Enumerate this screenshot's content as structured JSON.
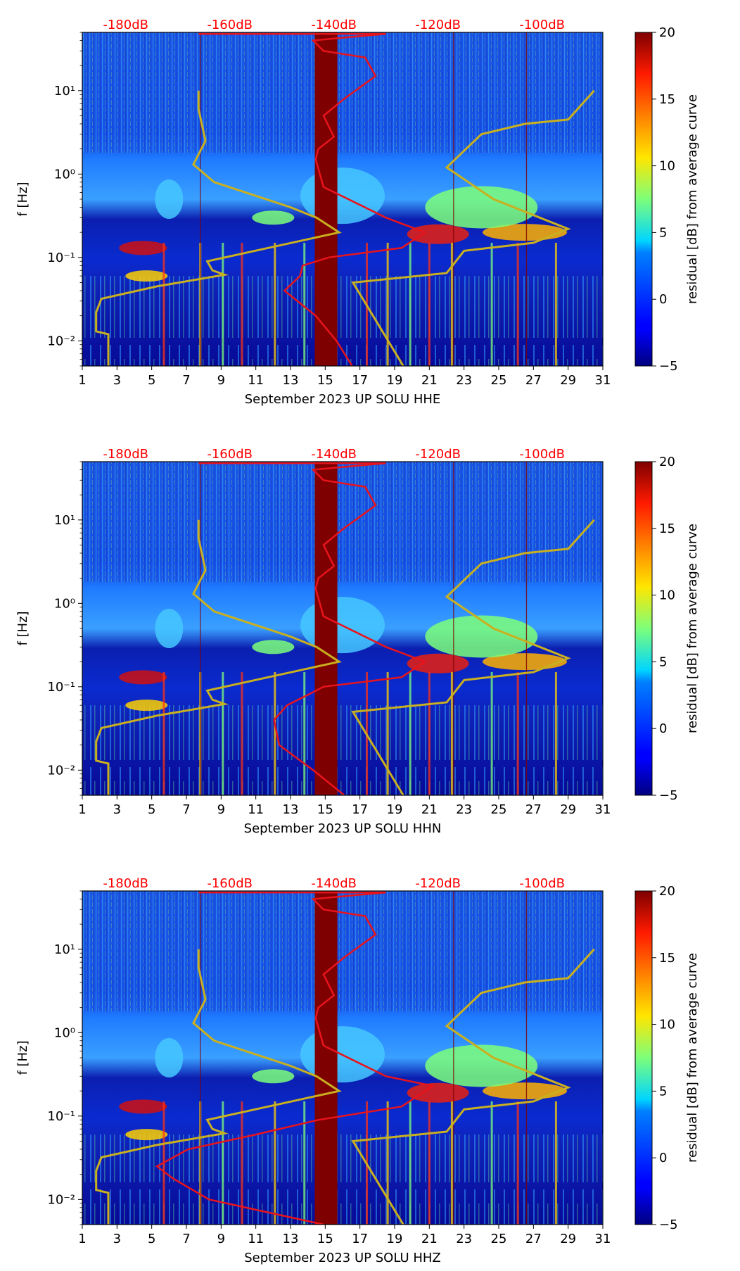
{
  "figure_title": "",
  "colors": {
    "psd_curve": "#e8141c",
    "model_curve": "#c9b020",
    "top_label": "#ff0000",
    "gap_band": "#7f0000"
  },
  "chart_data": [
    {
      "type": "heatmap",
      "panel": "HHE",
      "xlabel": "September 2023 UP SOLU  HHE",
      "ylabel": "f [Hz]",
      "x_ticks": [
        "1",
        "3",
        "5",
        "7",
        "9",
        "11",
        "13",
        "15",
        "17",
        "19",
        "21",
        "23",
        "25",
        "27",
        "29",
        "31"
      ],
      "y_ticks": [
        "10⁻²",
        "10⁻¹",
        "10⁰",
        "10¹"
      ],
      "top_ticks": [
        "-180dB",
        "-160dB",
        "-140dB",
        "-120dB",
        "-100dB"
      ],
      "top_axis_dB": [
        -180,
        -160,
        -140,
        -120,
        -100
      ],
      "colorbar": {
        "label": "residual [dB] from average curve",
        "min": -5,
        "max": 20,
        "ticks": [
          "−5",
          "0",
          "5",
          "10",
          "15",
          "20"
        ]
      },
      "xlim": [
        1,
        31
      ],
      "ylim_hz": [
        0.005,
        50
      ],
      "data_gap_days": [
        14.4,
        15.7
      ],
      "psd_curve_red": {
        "dB": [
          -136.5,
          -139.5,
          -143.5,
          -149.5,
          -146.5,
          -146,
          -141,
          -127,
          -122.5,
          -130,
          -142,
          -143.5,
          -143,
          -140,
          -142,
          -138,
          -132,
          -134,
          -142,
          -144,
          -135,
          -130,
          -166
        ],
        "f_hz": [
          0.005,
          0.01,
          0.02,
          0.04,
          0.06,
          0.08,
          0.1,
          0.13,
          0.2,
          0.3,
          0.7,
          1.5,
          2,
          2.8,
          5,
          8,
          15,
          25,
          30,
          40,
          45,
          48,
          48
        ]
      },
      "model_curve_yellow": {
        "day": [
          2.5,
          2.5,
          1.8,
          1.8,
          2.1,
          5.3,
          9.2,
          8.5,
          8.2,
          15.8,
          14.5,
          13,
          8.6,
          7.4,
          8.1,
          7.7,
          7.7,
          null,
          19.5,
          16.6,
          22,
          23,
          27,
          29,
          24.7,
          22,
          24,
          26.5,
          29,
          30.5
        ],
        "f_hz": [
          0.005,
          0.012,
          0.013,
          0.022,
          0.032,
          0.045,
          0.062,
          0.07,
          0.09,
          0.2,
          0.3,
          0.4,
          0.8,
          1.3,
          2.5,
          6,
          10,
          null,
          0.005,
          0.05,
          0.065,
          0.12,
          0.15,
          0.22,
          0.5,
          1.2,
          3,
          4,
          4.5,
          10
        ]
      }
    },
    {
      "type": "heatmap",
      "panel": "HHN",
      "xlabel": "September 2023 UP SOLU  HHN",
      "ylabel": "f [Hz]",
      "x_ticks": [
        "1",
        "3",
        "5",
        "7",
        "9",
        "11",
        "13",
        "15",
        "17",
        "19",
        "21",
        "23",
        "25",
        "27",
        "29",
        "31"
      ],
      "y_ticks": [
        "10⁻²",
        "10⁻¹",
        "10⁰",
        "10¹"
      ],
      "top_ticks": [
        "-180dB",
        "-160dB",
        "-140dB",
        "-120dB",
        "-100dB"
      ],
      "top_axis_dB": [
        -180,
        -160,
        -140,
        -120,
        -100
      ],
      "colorbar": {
        "label": "residual [dB] from average curve",
        "min": -5,
        "max": 20,
        "ticks": [
          "−5",
          "0",
          "5",
          "10",
          "15",
          "20"
        ]
      },
      "xlim": [
        1,
        31
      ],
      "ylim_hz": [
        0.005,
        50
      ],
      "data_gap_days": [
        14.4,
        15.7
      ],
      "psd_curve_red": {
        "dB": [
          -138,
          -144,
          -150.5,
          -151.5,
          -149,
          -145,
          -142,
          -127,
          -122.5,
          -130,
          -142,
          -143.5,
          -143,
          -140,
          -142,
          -138,
          -132,
          -134,
          -142,
          -144,
          -135,
          -130,
          -166
        ],
        "f_hz": [
          0.005,
          0.01,
          0.02,
          0.04,
          0.06,
          0.08,
          0.1,
          0.13,
          0.2,
          0.3,
          0.7,
          1.5,
          2,
          2.8,
          5,
          8,
          15,
          25,
          30,
          40,
          45,
          48,
          48
        ]
      },
      "model_curve_yellow": {
        "day": [
          2.5,
          2.5,
          1.8,
          1.8,
          2.1,
          5.3,
          9.2,
          8.5,
          8.2,
          15.8,
          14.5,
          13,
          8.6,
          7.4,
          8.1,
          7.7,
          7.7,
          null,
          19.5,
          16.6,
          22,
          23,
          27,
          29,
          24.7,
          22,
          24,
          26.5,
          29,
          30.5
        ],
        "f_hz": [
          0.005,
          0.012,
          0.013,
          0.022,
          0.032,
          0.045,
          0.062,
          0.07,
          0.09,
          0.2,
          0.3,
          0.4,
          0.8,
          1.3,
          2.5,
          6,
          10,
          null,
          0.005,
          0.05,
          0.065,
          0.12,
          0.15,
          0.22,
          0.5,
          1.2,
          3,
          4,
          4.5,
          10
        ]
      }
    },
    {
      "type": "heatmap",
      "panel": "HHZ",
      "xlabel": "September 2023 UP SOLU  HHZ",
      "ylabel": "f [Hz]",
      "x_ticks": [
        "1",
        "3",
        "5",
        "7",
        "9",
        "11",
        "13",
        "15",
        "17",
        "19",
        "21",
        "23",
        "25",
        "27",
        "29",
        "31"
      ],
      "y_ticks": [
        "10⁻²",
        "10⁻¹",
        "10⁰",
        "10¹"
      ],
      "top_ticks": [
        "-180dB",
        "-160dB",
        "-140dB",
        "-120dB",
        "-100dB"
      ],
      "top_axis_dB": [
        -180,
        -160,
        -140,
        -120,
        -100
      ],
      "colorbar": {
        "label": "residual [dB] from average curve",
        "min": -5,
        "max": 20,
        "ticks": [
          "−5",
          "0",
          "5",
          "10",
          "15",
          "20"
        ]
      },
      "xlim": [
        1,
        31
      ],
      "ylim_hz": [
        0.005,
        50
      ],
      "data_gap_days": [
        14.4,
        15.7
      ],
      "psd_curve_red": {
        "dB": [
          -142,
          -164,
          -171,
          -174,
          -168,
          -155,
          -143,
          -127,
          -121,
          -130,
          -142,
          -143.5,
          -143,
          -140,
          -142,
          -138,
          -132,
          -134,
          -142,
          -144,
          -135,
          -130,
          -166
        ],
        "f_hz": [
          0.005,
          0.01,
          0.018,
          0.025,
          0.04,
          0.06,
          0.09,
          0.13,
          0.23,
          0.3,
          0.7,
          1.5,
          2,
          2.8,
          5,
          8,
          15,
          25,
          30,
          40,
          45,
          48,
          48
        ]
      },
      "model_curve_yellow": {
        "day": [
          2.5,
          2.5,
          1.8,
          1.8,
          2.1,
          5.3,
          9.2,
          8.5,
          8.2,
          15.8,
          14.5,
          13,
          8.6,
          7.4,
          8.1,
          7.7,
          7.7,
          null,
          19.5,
          16.6,
          22,
          23,
          27,
          29,
          24.7,
          22,
          24,
          26.5,
          29,
          30.5
        ],
        "f_hz": [
          0.005,
          0.012,
          0.013,
          0.022,
          0.032,
          0.045,
          0.062,
          0.07,
          0.09,
          0.2,
          0.3,
          0.4,
          0.8,
          1.3,
          2.5,
          6,
          10,
          null,
          0.005,
          0.05,
          0.065,
          0.12,
          0.15,
          0.22,
          0.5,
          1.2,
          3,
          4,
          4.5,
          10
        ]
      }
    }
  ]
}
